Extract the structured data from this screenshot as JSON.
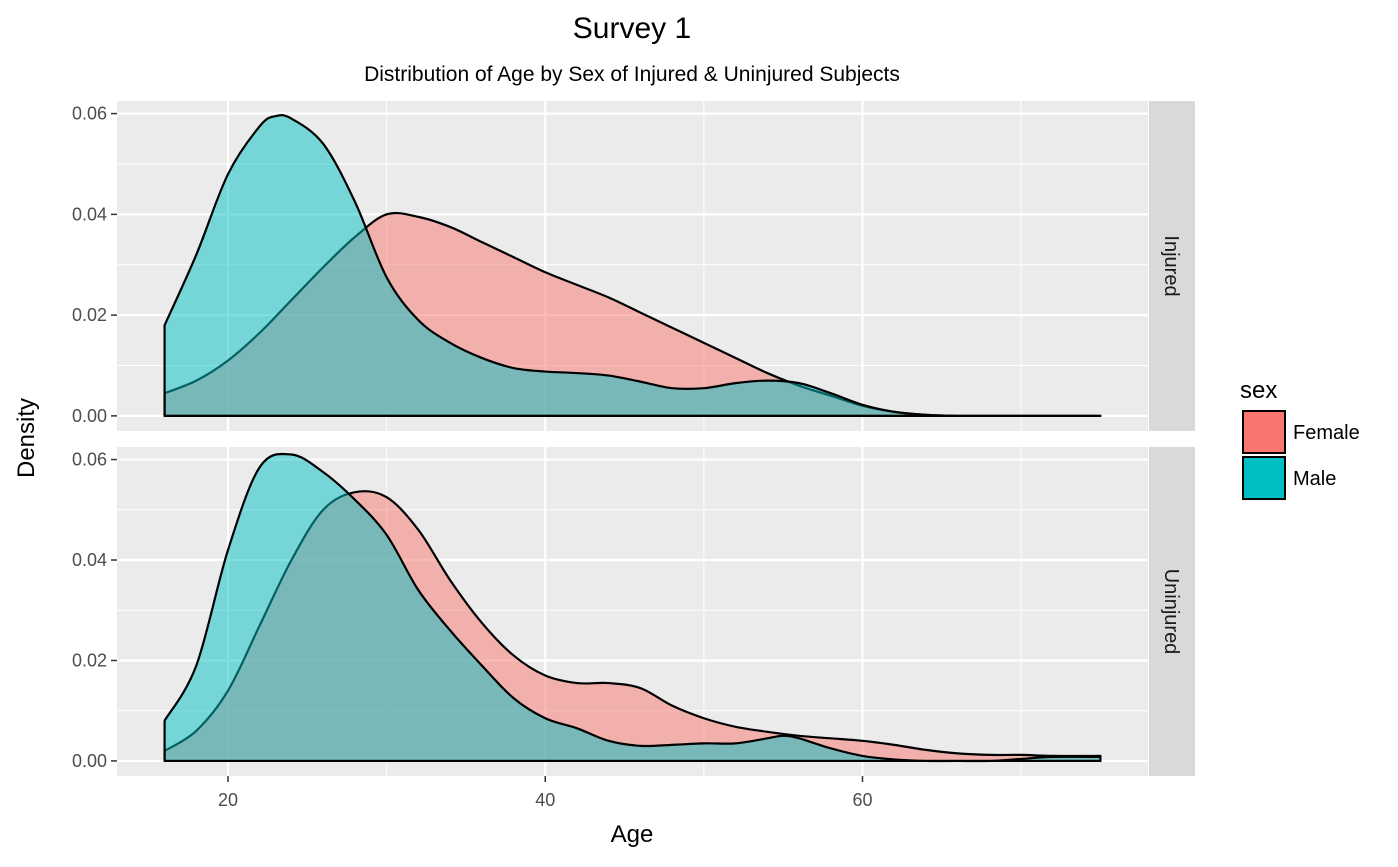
{
  "chart_data": {
    "type": "area",
    "chart_subtype": "density",
    "title": "Survey 1",
    "subtitle": "Distribution of Age by Sex of Injured & Uninjured Subjects",
    "xlabel": "Age",
    "ylabel": "Density",
    "xlim": [
      13,
      78
    ],
    "ylim": [
      -0.003,
      0.0625
    ],
    "x_ticks": [
      20,
      40,
      60
    ],
    "x_tick_labels": [
      "20",
      "40",
      "60"
    ],
    "y_ticks": [
      0,
      0.02,
      0.04,
      0.06
    ],
    "y_tick_labels": [
      "0.00",
      "0.02",
      "0.04",
      "0.06"
    ],
    "grid": true,
    "legend": {
      "title": "sex",
      "position": "right",
      "entries": [
        {
          "label": "Female",
          "color": "#F8766D"
        },
        {
          "label": "Male",
          "color": "#00BFC4"
        }
      ]
    },
    "facets": [
      {
        "label": "Injured",
        "series": [
          {
            "name": "Female",
            "color": "#F8766D",
            "x": [
              16,
              18,
              20,
              22,
              24,
              26,
              28,
              30,
              32,
              34,
              36,
              38,
              40,
              42,
              44,
              46,
              48,
              50,
              52,
              54,
              56,
              58,
              60,
              62,
              64,
              66,
              70,
              75
            ],
            "values": [
              0.0045,
              0.007,
              0.011,
              0.0165,
              0.023,
              0.0295,
              0.0355,
              0.04,
              0.0395,
              0.0375,
              0.0345,
              0.0315,
              0.0285,
              0.026,
              0.0235,
              0.0205,
              0.0175,
              0.0145,
              0.0115,
              0.0085,
              0.006,
              0.004,
              0.002,
              0.0008,
              0.0002,
              0.0,
              0.0,
              0.0
            ]
          },
          {
            "name": "Male",
            "color": "#00BFC4",
            "x": [
              16,
              18,
              20,
              22,
              23,
              24,
              26,
              28,
              30,
              32,
              34,
              36,
              38,
              40,
              42,
              44,
              46,
              48,
              50,
              52,
              54,
              56,
              58,
              60,
              62,
              64,
              66,
              70,
              75
            ],
            "values": [
              0.018,
              0.032,
              0.048,
              0.0575,
              0.0595,
              0.059,
              0.054,
              0.0425,
              0.0275,
              0.019,
              0.0145,
              0.0115,
              0.0095,
              0.0088,
              0.0085,
              0.008,
              0.0068,
              0.0055,
              0.0055,
              0.0065,
              0.007,
              0.0065,
              0.0045,
              0.0022,
              0.0008,
              0.0002,
              0.0,
              0.0,
              0.0
            ]
          }
        ]
      },
      {
        "label": "Uninjured",
        "series": [
          {
            "name": "Female",
            "color": "#F8766D",
            "x": [
              16,
              18,
              20,
              22,
              24,
              26,
              28,
              30,
              32,
              34,
              36,
              38,
              40,
              42,
              44,
              46,
              48,
              50,
              52,
              54,
              56,
              58,
              60,
              62,
              64,
              66,
              68,
              70,
              72,
              75
            ],
            "values": [
              0.002,
              0.006,
              0.014,
              0.027,
              0.04,
              0.05,
              0.0535,
              0.0525,
              0.046,
              0.036,
              0.0275,
              0.021,
              0.017,
              0.0155,
              0.0155,
              0.0145,
              0.011,
              0.0085,
              0.0068,
              0.0058,
              0.005,
              0.0045,
              0.004,
              0.0032,
              0.0022,
              0.0015,
              0.0012,
              0.0012,
              0.001,
              0.001
            ]
          },
          {
            "name": "Male",
            "color": "#00BFC4",
            "x": [
              16,
              18,
              20,
              22,
              24,
              26,
              28,
              30,
              32,
              34,
              36,
              38,
              40,
              42,
              44,
              46,
              48,
              50,
              52,
              54,
              55,
              56,
              58,
              60,
              62,
              64,
              66,
              68,
              70,
              72,
              75
            ],
            "values": [
              0.008,
              0.019,
              0.042,
              0.0585,
              0.061,
              0.0575,
              0.052,
              0.045,
              0.034,
              0.026,
              0.019,
              0.0125,
              0.0085,
              0.0065,
              0.004,
              0.003,
              0.0032,
              0.0035,
              0.0035,
              0.0045,
              0.005,
              0.0045,
              0.0025,
              0.001,
              0.0003,
              0.0,
              0.0,
              0.0,
              0.0004,
              0.0008,
              0.0008
            ]
          }
        ]
      }
    ]
  }
}
